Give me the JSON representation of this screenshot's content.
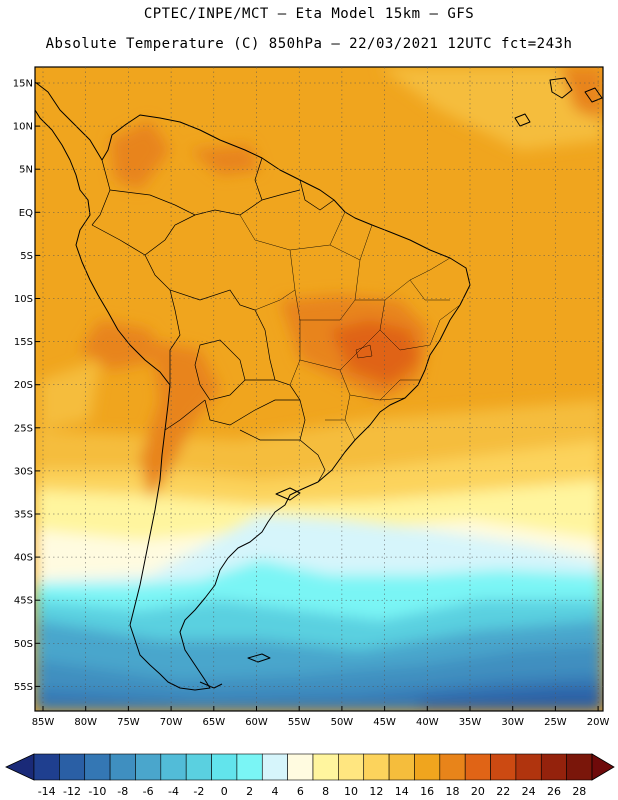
{
  "header": {
    "line1": "CPTEC/INPE/MCT –  Eta Model 15km – GFS",
    "line2": "Absolute Temperature (C) 850hPa – 22/03/2021 12UTC fct=243h"
  },
  "map": {
    "lat_labels": [
      "15N",
      "10N",
      "5N",
      "EQ",
      "5S",
      "10S",
      "15S",
      "20S",
      "25S",
      "30S",
      "35S",
      "40S",
      "45S",
      "50S",
      "55S"
    ],
    "lon_labels": [
      "85W",
      "80W",
      "75W",
      "70W",
      "65W",
      "60W",
      "55W",
      "50W",
      "45W",
      "40W",
      "35W",
      "30W",
      "25W",
      "20W"
    ]
  },
  "colorbar": {
    "labels": [
      "-14",
      "-12",
      "-10",
      "-8",
      "-6",
      "-4",
      "-2",
      "0",
      "2",
      "4",
      "6",
      "8",
      "10",
      "12",
      "14",
      "16",
      "18",
      "20",
      "22",
      "24",
      "26",
      "28"
    ],
    "colors": [
      "#1f3f8f",
      "#2a5fa5",
      "#3477b4",
      "#3f8fc0",
      "#4aa6cc",
      "#52bcd8",
      "#5ad0e0",
      "#62e4ec",
      "#7af5f5",
      "#d6f5fb",
      "#fffbe0",
      "#fff59e",
      "#ffe680",
      "#fcd35c",
      "#f5bd3c",
      "#f0a51e",
      "#e8841a",
      "#e06416",
      "#cc4a12",
      "#b0340e",
      "#94220c",
      "#7a160a"
    ],
    "low_arrow": "#1a2a78",
    "high_arrow": "#6e0a0a"
  }
}
